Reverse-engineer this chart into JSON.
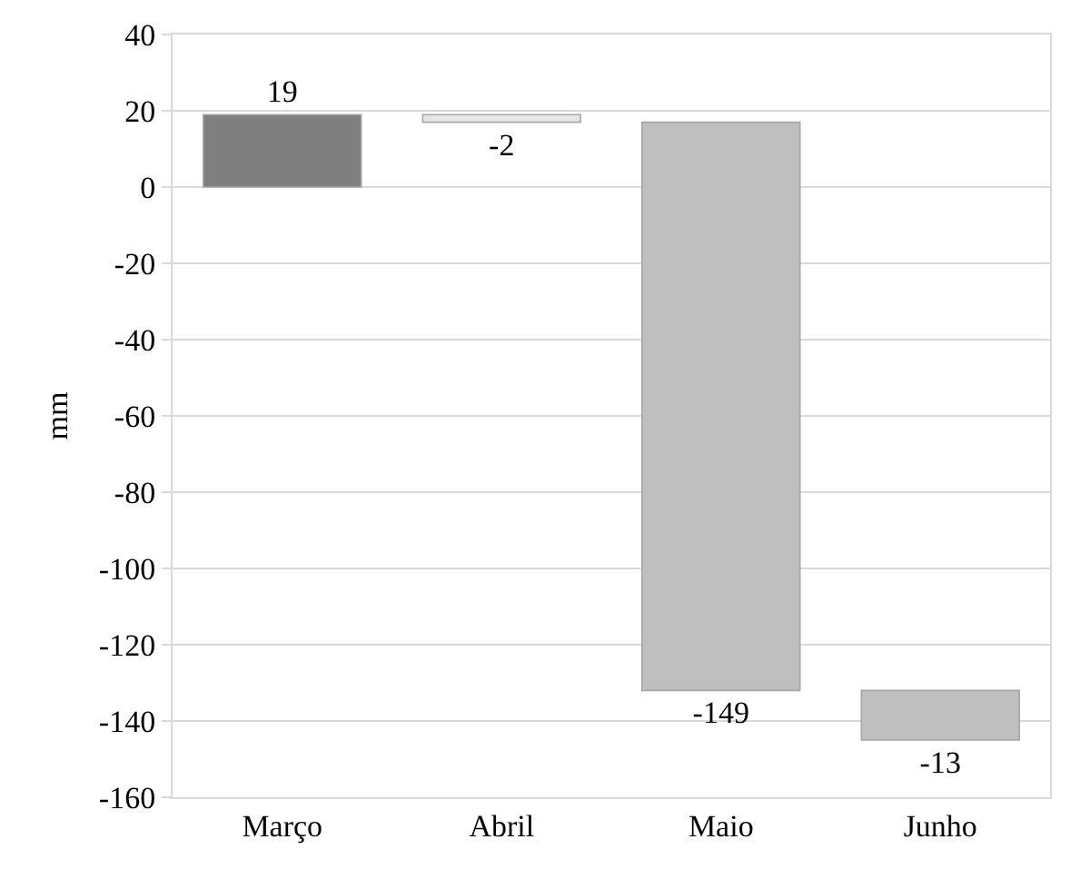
{
  "chart_data": {
    "type": "bar",
    "ylabel": "mm",
    "categories": [
      "Março",
      "Abril",
      "Maio",
      "Junho"
    ],
    "values": [
      19,
      -2,
      -149,
      -13
    ],
    "base": [
      0,
      19,
      17,
      -132
    ],
    "colors": [
      "#7f7f7f",
      "#e6e6e6",
      "#bfbfbf",
      "#bfbfbf"
    ],
    "data_labels": true,
    "ylim": [
      -160,
      40
    ],
    "yticks": [
      -160,
      -140,
      -120,
      -100,
      -80,
      -60,
      -40,
      -20,
      0,
      20,
      40
    ],
    "grid": "y"
  }
}
